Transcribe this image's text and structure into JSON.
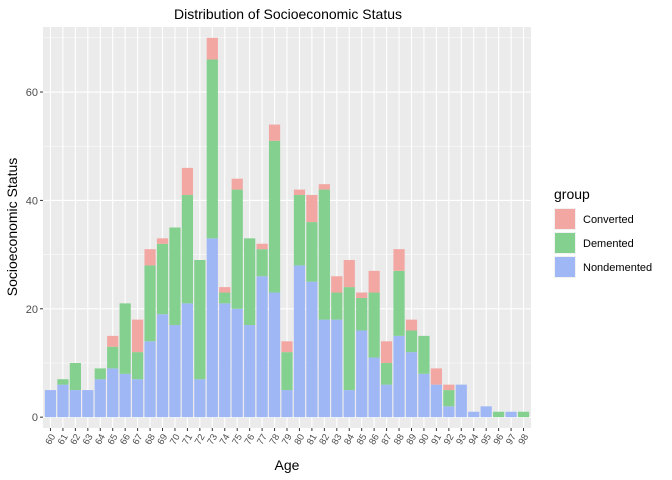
{
  "chart_data": {
    "type": "bar",
    "stacked": true,
    "title": "Distribution of Socioeconomic Status",
    "xlabel": "Age",
    "ylabel": "Socioeconomic Status",
    "ylim": [
      -2,
      72
    ],
    "yticks": [
      0,
      20,
      40,
      60
    ],
    "grid": true,
    "legend": {
      "title": "group",
      "position": "right"
    },
    "categories": [
      "60",
      "61",
      "62",
      "63",
      "64",
      "65",
      "66",
      "67",
      "68",
      "69",
      "70",
      "71",
      "72",
      "73",
      "74",
      "75",
      "76",
      "77",
      "78",
      "79",
      "80",
      "81",
      "82",
      "83",
      "84",
      "85",
      "86",
      "87",
      "88",
      "89",
      "90",
      "91",
      "92",
      "93",
      "94",
      "95",
      "96",
      "97",
      "98"
    ],
    "series": [
      {
        "name": "Nondemented",
        "color": "#a0b7f6",
        "values": [
          5,
          6,
          5,
          5,
          7,
          9,
          8,
          7,
          14,
          19,
          17,
          21,
          7,
          33,
          21,
          20,
          17,
          26,
          23,
          5,
          28,
          25,
          18,
          18,
          5,
          16,
          11,
          6,
          15,
          12,
          8,
          6,
          2,
          6,
          1,
          2,
          0,
          1,
          0
        ]
      },
      {
        "name": "Demented",
        "color": "#83d08f",
        "values": [
          0,
          1,
          5,
          0,
          2,
          4,
          13,
          5,
          14,
          13,
          18,
          20,
          22,
          33,
          2,
          22,
          16,
          5,
          28,
          7,
          13,
          11,
          24,
          5,
          19,
          6,
          12,
          4,
          12,
          4,
          7,
          0,
          3,
          0,
          0,
          0,
          1,
          0,
          1
        ]
      },
      {
        "name": "Converted",
        "color": "#f2a7a3",
        "values": [
          0,
          0,
          0,
          0,
          0,
          2,
          0,
          6,
          3,
          1,
          0,
          5,
          0,
          4,
          1,
          2,
          0,
          1,
          3,
          2,
          1,
          5,
          1,
          3,
          5,
          1,
          4,
          4,
          4,
          2,
          0,
          3,
          1,
          0,
          0,
          0,
          0,
          0,
          0
        ]
      }
    ]
  }
}
